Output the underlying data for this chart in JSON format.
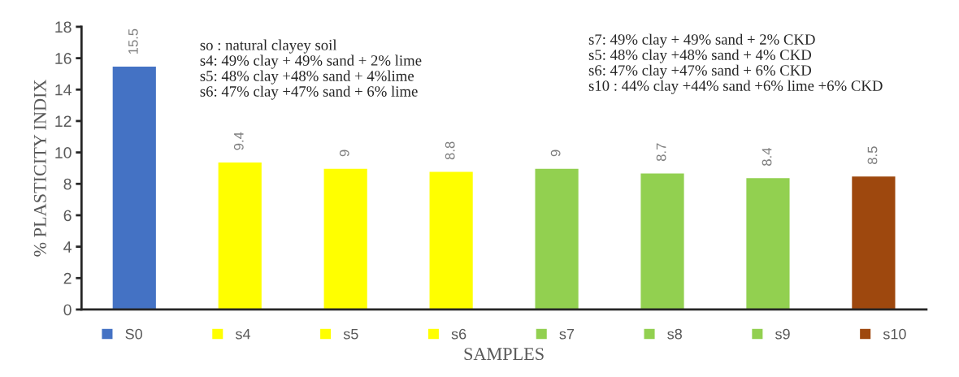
{
  "chart_data": {
    "type": "bar",
    "xlabel": "SAMPLES",
    "ylabel": "% PLASTICITY INDIX",
    "categories": [
      null,
      null,
      null,
      null,
      null,
      null,
      null,
      null
    ],
    "series": [
      {
        "name": "S0",
        "color": "#4472c4",
        "values": [
          15.5,
          null,
          null,
          null,
          null,
          null,
          null,
          null
        ]
      },
      {
        "name": "s4",
        "color": "#ffff00",
        "values": [
          null,
          9.4,
          null,
          null,
          null,
          null,
          null,
          null
        ]
      },
      {
        "name": "s5",
        "color": "#ffff00",
        "values": [
          null,
          null,
          9,
          null,
          null,
          null,
          null,
          null
        ]
      },
      {
        "name": "s6",
        "color": "#ffff00",
        "values": [
          null,
          null,
          null,
          8.8,
          null,
          null,
          null,
          null
        ]
      },
      {
        "name": "s7",
        "color": "#92d050",
        "values": [
          null,
          null,
          null,
          null,
          9,
          null,
          null,
          null
        ]
      },
      {
        "name": "s8",
        "color": "#92d050",
        "values": [
          null,
          null,
          null,
          null,
          null,
          8.7,
          null,
          null
        ]
      },
      {
        "name": "s9",
        "color": "#92d050",
        "values": [
          null,
          null,
          null,
          null,
          null,
          null,
          8.4,
          null
        ]
      },
      {
        "name": "s10",
        "color": "#9e480e",
        "values": [
          null,
          null,
          null,
          null,
          null,
          null,
          null,
          8.5
        ]
      }
    ],
    "ylim": [
      0,
      18
    ],
    "yticks": [
      0,
      2,
      4,
      6,
      8,
      10,
      12,
      14,
      16,
      18
    ],
    "data_labels": true,
    "grid": false,
    "legend": "bottom",
    "annotations": [
      "so : natural clayey soil\ns4: 49% clay + 49% sand + 2% lime\ns5: 48% clay +48% sand + 4%lime\ns6: 47% clay +47% sand + 6% lime",
      "s7: 49% clay + 49% sand + 2% CKD\ns5: 48% clay +48% sand + 4% CKD\ns6: 47% clay +47% sand + 6% CKD\ns10 : 44% clay +44% sand +6% lime +6% CKD"
    ]
  }
}
